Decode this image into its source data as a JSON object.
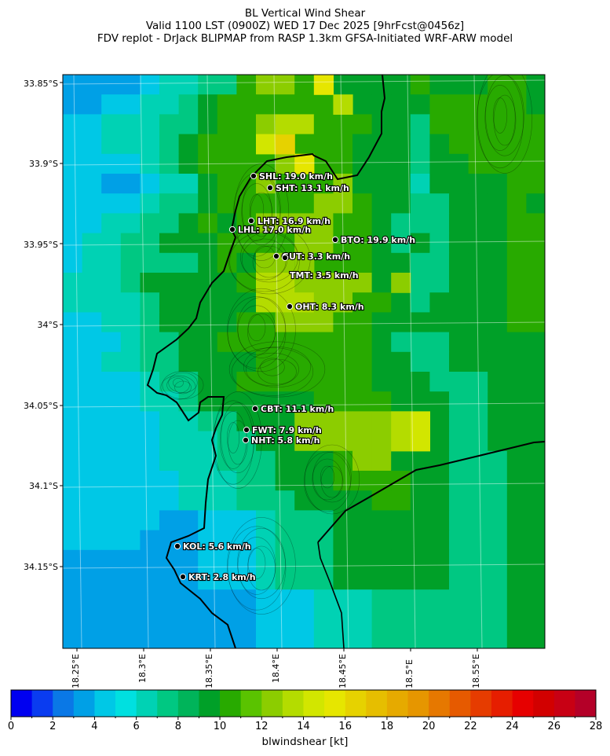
{
  "title_lines": [
    "BL Vertical Wind Shear",
    "Valid 1100 LST (0900Z) WED 17 Dec 2025 [9hrFcst@0456z]",
    "FDV replot - DrJack BLIPMAP from RASP 1.3km GFSA-Initiated WRF-ARW model"
  ],
  "lat_labels": [
    "33.85°S",
    "33.9°S",
    "33.95°S",
    "34°S",
    "34.05°S",
    "34.1°S",
    "34.15°S"
  ],
  "lon_labels": [
    "18.25°E",
    "18.3°E",
    "18.35°E",
    "18.4°E",
    "18.45°E",
    "18.5°E",
    "18.55°E"
  ],
  "stations": [
    {
      "name": "SHL: 19.0 km/h"
    },
    {
      "name": "SHT: 13.1 km/h"
    },
    {
      "name": "LHT: 16.9 km/h"
    },
    {
      "name": "LHL: 17.0 km/h"
    },
    {
      "name": "BTO: 19.9 km/h"
    },
    {
      "name": "GUT: 3.3 km/h"
    },
    {
      "name": "TMT: 3.5 km/h"
    },
    {
      "name": "OHT: 8.3 km/h"
    },
    {
      "name": "CBT: 11.1 km/h"
    },
    {
      "name": "FWT: 7.9 km/h"
    },
    {
      "name": "NHT: 5.8 km/h"
    },
    {
      "name": "KOL: 5.6 km/h"
    },
    {
      "name": "KRT: 2.8 km/h"
    }
  ],
  "colorbar": {
    "label": "blwindshear [kt]",
    "min": 0,
    "max": 28,
    "step": 1,
    "ticks": [
      "0",
      "2",
      "4",
      "6",
      "8",
      "10",
      "12",
      "14",
      "16",
      "18",
      "20",
      "22",
      "24",
      "26",
      "28"
    ],
    "colors": [
      "#0000f0",
      "#0a3cf0",
      "#0a78e6",
      "#00a0e6",
      "#00c8e6",
      "#00e0e0",
      "#00d2b4",
      "#00c882",
      "#00b45a",
      "#00a028",
      "#28aa00",
      "#5ac300",
      "#8ccd00",
      "#b4dc00",
      "#d2e600",
      "#e6e600",
      "#e6d200",
      "#e6be00",
      "#e6aa00",
      "#e69600",
      "#e67800",
      "#e65a00",
      "#e63c00",
      "#e61e00",
      "#e60000",
      "#d20000",
      "#c80014",
      "#b40028"
    ]
  }
}
